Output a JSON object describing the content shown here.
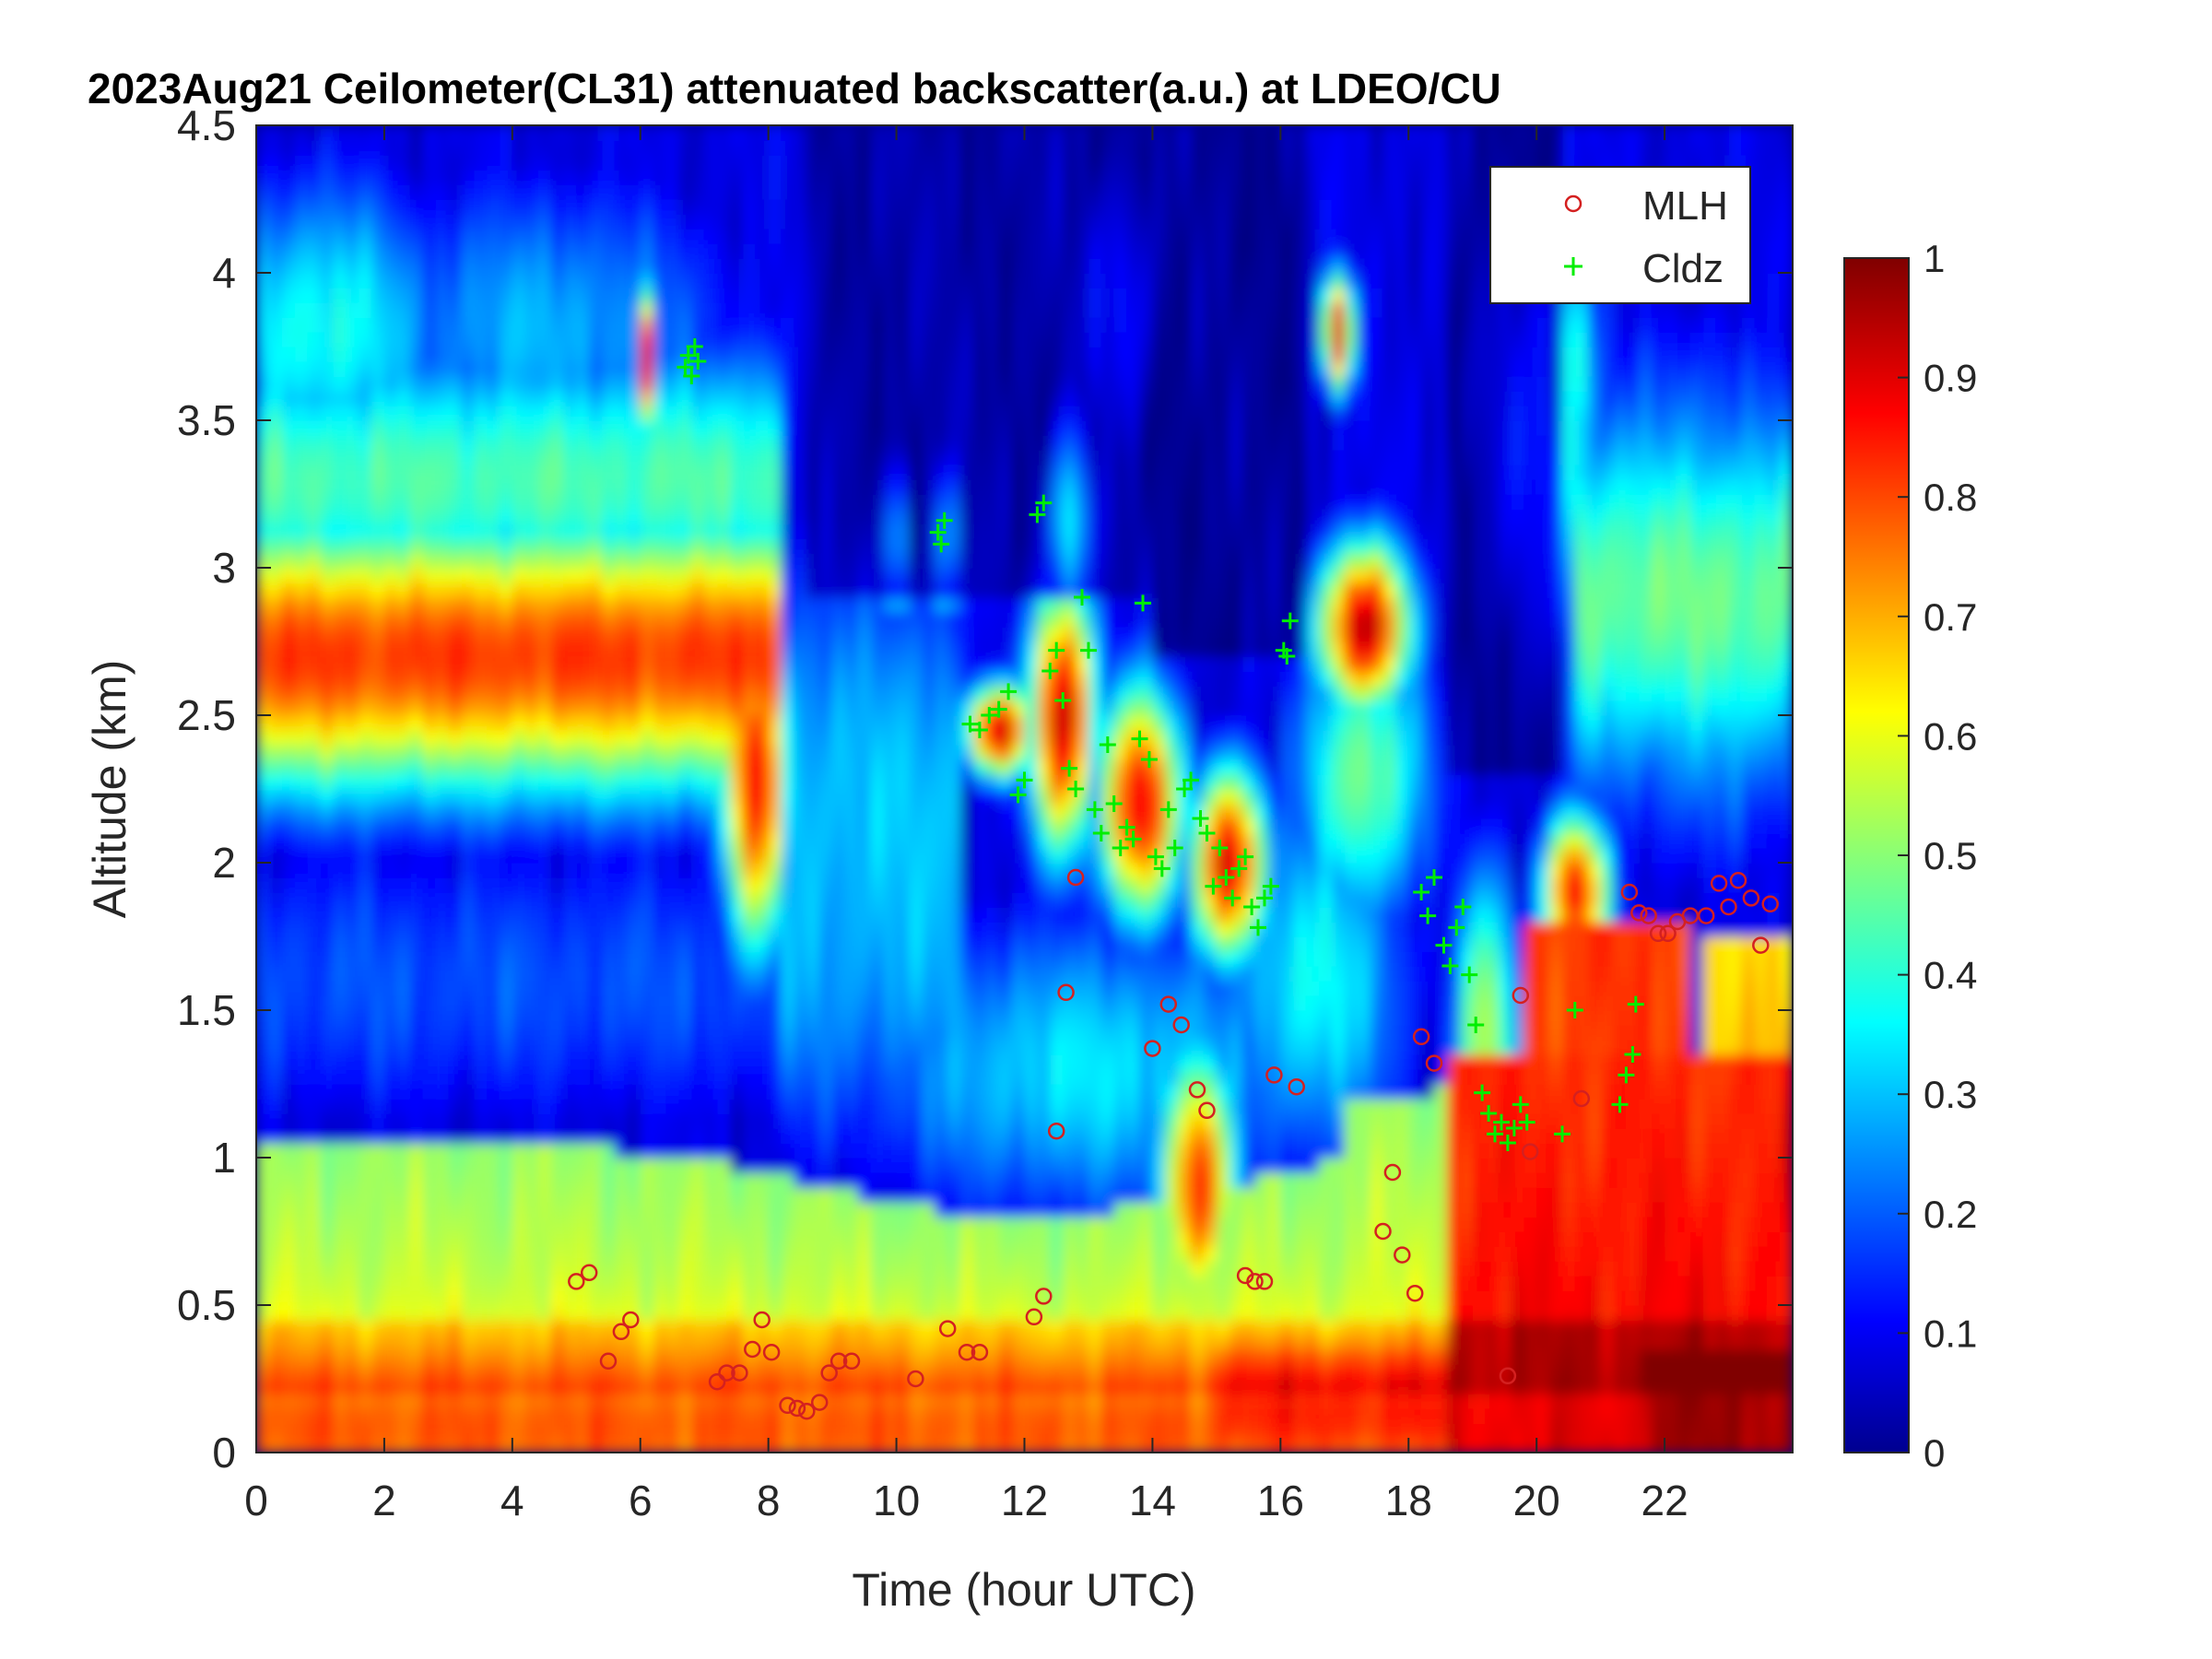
{
  "chart_data": {
    "type": "heatmap",
    "title": "2023Aug21 Ceilometer(CL31) attenuated backscatter(a.u.) at LDEO/CU",
    "xlabel": "Time (hour UTC)",
    "ylabel": "Altitude (km)",
    "xlim": [
      0,
      24
    ],
    "ylim": [
      0,
      4.5
    ],
    "x_ticks": [
      "0",
      "2",
      "4",
      "6",
      "8",
      "10",
      "12",
      "14",
      "16",
      "18",
      "20",
      "22"
    ],
    "y_ticks": [
      "0",
      "0.5",
      "1",
      "1.5",
      "2",
      "2.5",
      "3",
      "3.5",
      "4",
      "4.5"
    ],
    "colorbar": {
      "colormap": "jet",
      "range": [
        0,
        1
      ],
      "ticks": [
        "0",
        "0.1",
        "0.2",
        "0.3",
        "0.4",
        "0.5",
        "0.6",
        "0.7",
        "0.8",
        "0.9",
        "1"
      ]
    },
    "legend": {
      "placement": "top-right",
      "entries": [
        "MLH",
        "Cldz"
      ]
    },
    "series": [
      {
        "name": "MLH",
        "marker": "circle",
        "color": "#d42020",
        "points": [
          [
            5.0,
            0.58
          ],
          [
            5.2,
            0.61
          ],
          [
            5.5,
            0.31
          ],
          [
            5.7,
            0.41
          ],
          [
            5.85,
            0.45
          ],
          [
            7.2,
            0.24
          ],
          [
            7.35,
            0.27
          ],
          [
            7.55,
            0.27
          ],
          [
            7.75,
            0.35
          ],
          [
            7.9,
            0.45
          ],
          [
            8.05,
            0.34
          ],
          [
            8.3,
            0.16
          ],
          [
            8.45,
            0.15
          ],
          [
            8.6,
            0.14
          ],
          [
            8.8,
            0.17
          ],
          [
            8.95,
            0.27
          ],
          [
            9.1,
            0.31
          ],
          [
            9.3,
            0.31
          ],
          [
            10.3,
            0.25
          ],
          [
            10.8,
            0.42
          ],
          [
            11.1,
            0.34
          ],
          [
            11.3,
            0.34
          ],
          [
            12.15,
            0.46
          ],
          [
            12.3,
            0.53
          ],
          [
            12.5,
            1.09
          ],
          [
            12.65,
            1.56
          ],
          [
            12.8,
            1.95
          ],
          [
            14.0,
            1.37
          ],
          [
            14.25,
            1.52
          ],
          [
            14.45,
            1.45
          ],
          [
            14.7,
            1.23
          ],
          [
            14.85,
            1.16
          ],
          [
            15.45,
            0.6
          ],
          [
            15.6,
            0.58
          ],
          [
            15.75,
            0.58
          ],
          [
            15.9,
            1.28
          ],
          [
            16.25,
            1.24
          ],
          [
            17.6,
            0.75
          ],
          [
            17.75,
            0.95
          ],
          [
            17.9,
            0.67
          ],
          [
            18.1,
            0.54
          ],
          [
            18.2,
            1.41
          ],
          [
            18.4,
            1.32
          ],
          [
            19.55,
            0.26
          ],
          [
            19.75,
            1.55
          ],
          [
            19.9,
            1.02
          ],
          [
            20.7,
            1.2
          ],
          [
            21.45,
            1.9
          ],
          [
            21.6,
            1.83
          ],
          [
            21.75,
            1.82
          ],
          [
            21.9,
            1.76
          ],
          [
            22.05,
            1.76
          ],
          [
            22.2,
            1.8
          ],
          [
            22.4,
            1.82
          ],
          [
            22.65,
            1.82
          ],
          [
            22.85,
            1.93
          ],
          [
            23.0,
            1.85
          ],
          [
            23.15,
            1.94
          ],
          [
            23.35,
            1.88
          ],
          [
            23.5,
            1.72
          ],
          [
            23.65,
            1.86
          ]
        ]
      },
      {
        "name": "Cldz",
        "marker": "plus",
        "color": "#00ee00",
        "points": [
          [
            6.7,
            3.68
          ],
          [
            6.75,
            3.72
          ],
          [
            6.8,
            3.65
          ],
          [
            6.85,
            3.75
          ],
          [
            6.9,
            3.7
          ],
          [
            10.65,
            3.12
          ],
          [
            10.7,
            3.08
          ],
          [
            10.75,
            3.16
          ],
          [
            11.15,
            2.47
          ],
          [
            11.3,
            2.45
          ],
          [
            11.45,
            2.5
          ],
          [
            11.6,
            2.52
          ],
          [
            11.75,
            2.58
          ],
          [
            11.9,
            2.23
          ],
          [
            12.0,
            2.28
          ],
          [
            12.2,
            3.18
          ],
          [
            12.3,
            3.22
          ],
          [
            12.4,
            2.65
          ],
          [
            12.5,
            2.72
          ],
          [
            12.6,
            2.55
          ],
          [
            12.7,
            2.32
          ],
          [
            12.8,
            2.25
          ],
          [
            12.9,
            2.9
          ],
          [
            13.0,
            2.72
          ],
          [
            13.1,
            2.18
          ],
          [
            13.2,
            2.1
          ],
          [
            13.3,
            2.4
          ],
          [
            13.4,
            2.2
          ],
          [
            13.5,
            2.05
          ],
          [
            13.6,
            2.12
          ],
          [
            13.7,
            2.08
          ],
          [
            13.8,
            2.42
          ],
          [
            13.85,
            2.88
          ],
          [
            13.95,
            2.35
          ],
          [
            14.05,
            2.02
          ],
          [
            14.15,
            1.98
          ],
          [
            14.25,
            2.18
          ],
          [
            14.35,
            2.05
          ],
          [
            14.5,
            2.25
          ],
          [
            14.6,
            2.28
          ],
          [
            14.75,
            2.15
          ],
          [
            14.85,
            2.1
          ],
          [
            14.95,
            1.92
          ],
          [
            15.05,
            2.05
          ],
          [
            15.15,
            1.95
          ],
          [
            15.25,
            1.88
          ],
          [
            15.35,
            1.98
          ],
          [
            15.45,
            2.02
          ],
          [
            15.55,
            1.85
          ],
          [
            15.65,
            1.78
          ],
          [
            15.75,
            1.88
          ],
          [
            15.85,
            1.92
          ],
          [
            16.05,
            2.72
          ],
          [
            16.1,
            2.7
          ],
          [
            16.15,
            2.82
          ],
          [
            18.2,
            1.9
          ],
          [
            18.3,
            1.82
          ],
          [
            18.4,
            1.95
          ],
          [
            18.55,
            1.72
          ],
          [
            18.65,
            1.65
          ],
          [
            18.75,
            1.78
          ],
          [
            18.85,
            1.85
          ],
          [
            18.95,
            1.62
          ],
          [
            19.05,
            1.45
          ],
          [
            19.15,
            1.22
          ],
          [
            19.25,
            1.15
          ],
          [
            19.35,
            1.08
          ],
          [
            19.45,
            1.12
          ],
          [
            19.55,
            1.05
          ],
          [
            19.65,
            1.1
          ],
          [
            19.75,
            1.18
          ],
          [
            19.85,
            1.12
          ],
          [
            20.4,
            1.08
          ],
          [
            20.6,
            1.5
          ],
          [
            21.3,
            1.18
          ],
          [
            21.4,
            1.28
          ],
          [
            21.5,
            1.35
          ],
          [
            21.55,
            1.52
          ]
        ]
      }
    ]
  }
}
